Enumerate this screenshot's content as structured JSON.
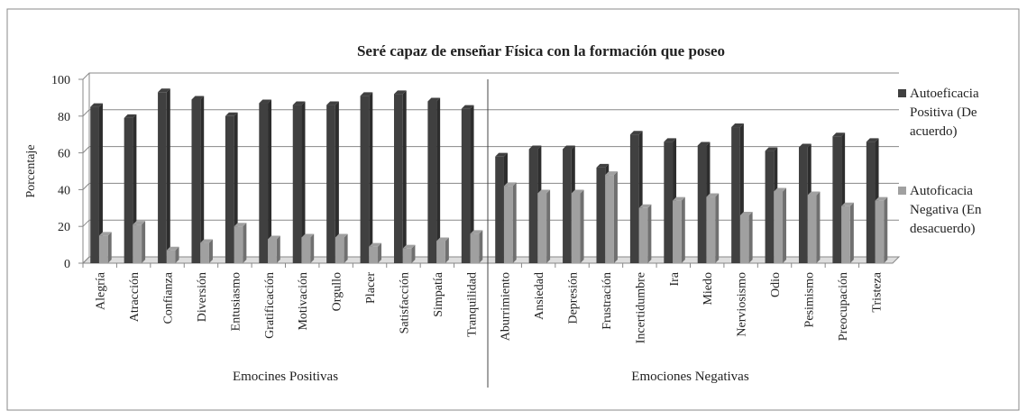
{
  "chart_data": {
    "type": "bar",
    "title": "Seré capaz de enseñar Física con la formación que poseo",
    "y_label": "Porcentaje",
    "categories": [
      "Alegría",
      "Atracción",
      "Confianza",
      "Diversión",
      "Entusiasmo",
      "Gratificación",
      "Motivación",
      "Orgullo",
      "Placer",
      "Satisfacción",
      "Simpatía",
      "Tranquilidad",
      "Aburrimiento",
      "Ansiedad",
      "Depresión",
      "Frustración",
      "Incertidumbre",
      "Ira",
      "Miedo",
      "Nerviosismo",
      "Odio",
      "Pesimismo",
      "Preocupación",
      "Tristeza"
    ],
    "group_labels": [
      "Emocines Positivas",
      "Emociones Negativas"
    ],
    "series": [
      {
        "name": "Autoeficacia Positiva (De acuerdo)",
        "color": "#404040",
        "values": [
          85,
          79,
          93,
          89,
          80,
          87,
          86,
          86,
          91,
          92,
          88,
          84,
          58,
          62,
          62,
          52,
          70,
          66,
          64,
          74,
          61,
          63,
          69,
          66
        ]
      },
      {
        "name": "Autoficacia Negativa (En desacuerdo)",
        "color": "#a0a0a0",
        "values": [
          15,
          21,
          7,
          11,
          20,
          13,
          14,
          14,
          9,
          8,
          12,
          16,
          42,
          38,
          38,
          48,
          30,
          34,
          36,
          26,
          39,
          37,
          31,
          34
        ]
      }
    ],
    "ylim": [
      0,
      100
    ],
    "yticks": [
      0,
      20,
      40,
      60,
      80,
      100
    ],
    "grid": true
  }
}
